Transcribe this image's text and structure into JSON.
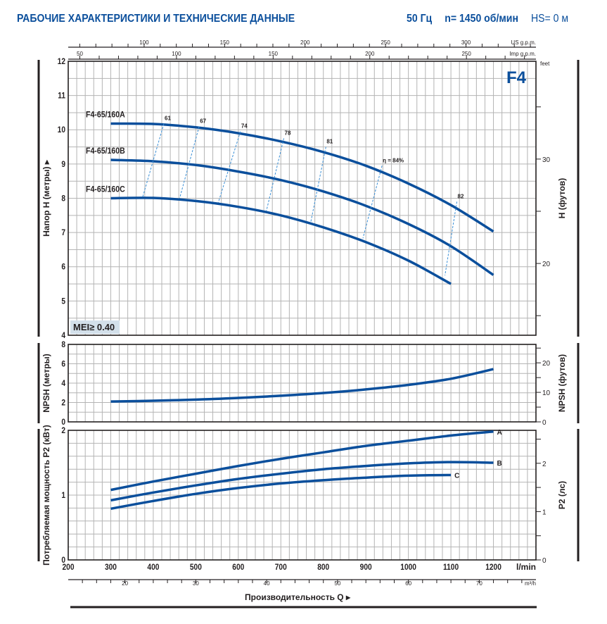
{
  "header": {
    "title": "РАБОЧИЕ ХАРАКТЕРИСТИКИ И ТЕХНИЧЕСКИЕ ДАННЫЕ",
    "frequency": "50 Гц",
    "speed": "n= 1450 об/мин",
    "hs": "HS= 0 м"
  },
  "colors": {
    "curve": "#0b4f9c",
    "efficiency_line": "#3a8fd6",
    "grid": "#b4b4b4",
    "frame": "#231f20",
    "mei_badge": "#d3e0ea",
    "title": "#0b4f9c"
  },
  "chart_data": [
    {
      "type": "line",
      "id": "head",
      "title": "F4",
      "xlabel": "Производительность Q",
      "ylabel": "Напор H (метры)",
      "ylabel_right": "H (футов)",
      "xlim": [
        200,
        1300
      ],
      "ylim": [
        4,
        12
      ],
      "yticks": [
        4,
        5,
        6,
        7,
        8,
        9,
        10,
        11,
        12
      ],
      "yticks_right": [
        20,
        30
      ],
      "right_unit_per_left": 3.2808,
      "right_unit_label": "feet",
      "grid": true,
      "badge": "MEI≥ 0.40",
      "series": [
        {
          "name": "F4-65/160A",
          "x": [
            300,
            400,
            500,
            600,
            700,
            800,
            900,
            1000,
            1100,
            1200
          ],
          "y": [
            10.18,
            10.17,
            10.07,
            9.9,
            9.66,
            9.35,
            8.95,
            8.43,
            7.8,
            7.03
          ]
        },
        {
          "name": "F4-65/160B",
          "x": [
            300,
            400,
            500,
            600,
            700,
            800,
            900,
            1000,
            1100,
            1200
          ],
          "y": [
            9.12,
            9.08,
            8.97,
            8.78,
            8.53,
            8.2,
            7.78,
            7.25,
            6.6,
            5.76
          ]
        },
        {
          "name": "F4-65/160C",
          "x": [
            300,
            400,
            500,
            600,
            700,
            800,
            900,
            1000,
            1100
          ],
          "y": [
            8.0,
            8.01,
            7.92,
            7.75,
            7.5,
            7.15,
            6.72,
            6.18,
            5.5
          ]
        }
      ],
      "efficiency_lines": [
        {
          "label": "61",
          "top": [
            425,
            10.18
          ],
          "bottom": [
            375,
            8.03
          ]
        },
        {
          "label": "67",
          "top": [
            508,
            10.1
          ],
          "bottom": [
            462,
            8.0
          ]
        },
        {
          "label": "74",
          "top": [
            605,
            9.95
          ],
          "bottom": [
            553,
            7.88
          ]
        },
        {
          "label": "78",
          "top": [
            707,
            9.75
          ],
          "bottom": [
            666,
            7.63
          ]
        },
        {
          "label": "81",
          "top": [
            806,
            9.5
          ],
          "bottom": [
            770,
            7.28
          ]
        },
        {
          "label": "η = 84%",
          "top": [
            938,
            8.95
          ],
          "bottom": [
            893,
            6.83
          ]
        },
        {
          "label": "82",
          "top": [
            1114,
            7.9
          ],
          "bottom": [
            1086,
            5.75
          ]
        }
      ]
    },
    {
      "type": "line",
      "id": "npsh",
      "ylabel": "NPSH (метры)",
      "ylabel_right": "NPSH (футов)",
      "xlim": [
        200,
        1300
      ],
      "ylim": [
        0,
        8
      ],
      "yticks": [
        0,
        2,
        4,
        6,
        8
      ],
      "yticks_right": [
        0,
        10,
        20
      ],
      "right_unit_per_left": 3.2808,
      "grid": true,
      "series": [
        {
          "name": "NPSH",
          "x": [
            300,
            400,
            500,
            600,
            700,
            800,
            900,
            1000,
            1100,
            1200
          ],
          "y": [
            2.1,
            2.18,
            2.3,
            2.47,
            2.7,
            2.98,
            3.35,
            3.82,
            4.45,
            5.45
          ]
        }
      ]
    },
    {
      "type": "line",
      "id": "power",
      "ylabel": "Потребляемая мощность P2 (кВт)",
      "ylabel_right": "P2 (лс)",
      "xlabel": "Производительность Q",
      "x_unit": "l/min",
      "xticks": [
        200,
        300,
        400,
        500,
        600,
        700,
        800,
        900,
        1000,
        1100,
        1200
      ],
      "xlim": [
        200,
        1300
      ],
      "ylim": [
        0,
        2
      ],
      "yticks": [
        0,
        1,
        2
      ],
      "yticks_right": [
        0,
        1,
        2
      ],
      "right_unit_per_left": 1.341,
      "grid": true,
      "series": [
        {
          "name": "A",
          "x": [
            300,
            400,
            500,
            600,
            700,
            800,
            900,
            1000,
            1100,
            1200
          ],
          "y": [
            1.08,
            1.21,
            1.33,
            1.45,
            1.56,
            1.66,
            1.76,
            1.84,
            1.92,
            1.98
          ]
        },
        {
          "name": "B",
          "x": [
            300,
            400,
            500,
            600,
            700,
            800,
            900,
            1000,
            1100,
            1200
          ],
          "y": [
            0.92,
            1.04,
            1.15,
            1.25,
            1.33,
            1.4,
            1.45,
            1.49,
            1.51,
            1.5
          ]
        },
        {
          "name": "C",
          "x": [
            300,
            400,
            500,
            600,
            700,
            800,
            900,
            1000,
            1100
          ],
          "y": [
            0.79,
            0.91,
            1.02,
            1.11,
            1.18,
            1.23,
            1.27,
            1.3,
            1.31
          ]
        }
      ]
    }
  ],
  "secondary_axes": {
    "us_gpm": {
      "label": "US g.p.m.",
      "ticks": [
        100,
        150,
        200,
        250,
        300
      ],
      "lpm_per_unit": 3.785
    },
    "imp_gpm": {
      "label": "Imp g.p.m.",
      "ticks": [
        50,
        100,
        150,
        200,
        250
      ],
      "lpm_per_unit": 4.546
    },
    "m3h": {
      "label": "m³/h",
      "ticks": [
        20,
        30,
        40,
        50,
        60,
        70
      ],
      "lpm_per_unit": 16.667
    }
  },
  "xaxis_title": "Производительность Q"
}
